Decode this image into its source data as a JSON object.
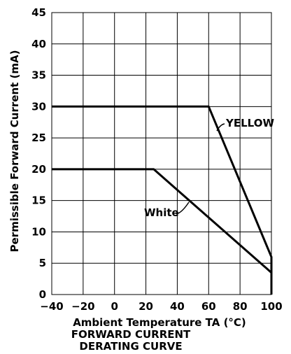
{
  "chart_data": {
    "type": "line",
    "title": "",
    "xlabel": "Ambient Temperature TA (°C)",
    "ylabel": "Permissible Forward Current (mA)",
    "caption": [
      "FORWARD CURRENT",
      "DERATING CURVE"
    ],
    "xlim": [
      -40,
      100
    ],
    "ylim": [
      0,
      45
    ],
    "xticks": [
      -40,
      -20,
      0,
      20,
      40,
      60,
      80,
      100
    ],
    "xtick_labels": [
      "−40",
      "−20",
      "0",
      "20",
      "40",
      "60",
      "80",
      "100"
    ],
    "yticks": [
      0,
      5,
      10,
      15,
      20,
      25,
      30,
      35,
      40,
      45
    ],
    "ytick_labels": [
      "0",
      "5",
      "10",
      "15",
      "20",
      "25",
      "30",
      "35",
      "40",
      "45"
    ],
    "grid": true,
    "series": [
      {
        "name": "YELLOW",
        "x": [
          -40,
          60,
          100,
          100
        ],
        "y": [
          30,
          30,
          6,
          0
        ]
      },
      {
        "name": "White",
        "x": [
          -40,
          25,
          100,
          100
        ],
        "y": [
          20,
          20,
          3.5,
          0
        ]
      }
    ]
  }
}
